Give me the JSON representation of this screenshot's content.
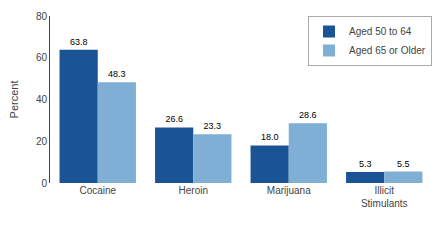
{
  "chart_data": {
    "type": "bar",
    "categories": [
      "Cocaine",
      "Heroin",
      "Marijuana",
      "Illicit\nStimulants"
    ],
    "series": [
      {
        "name": "Aged 50 to 64",
        "color": "#1a5494",
        "values": [
          63.8,
          26.6,
          18.0,
          5.3
        ],
        "value_labels": [
          "63.8",
          "26.6",
          "18.0",
          "5.3"
        ]
      },
      {
        "name": "Aged 65 or Older",
        "color": "#7fafd4",
        "values": [
          48.3,
          23.3,
          28.6,
          5.5
        ],
        "value_labels": [
          "48.3",
          "23.3",
          "28.6",
          "5.5"
        ]
      }
    ],
    "ylabel": "Percent",
    "ylim": [
      0,
      80
    ],
    "yticks": [
      0,
      20,
      40,
      60,
      80
    ],
    "grid": false,
    "legend": "upper right",
    "data_labels": true
  }
}
